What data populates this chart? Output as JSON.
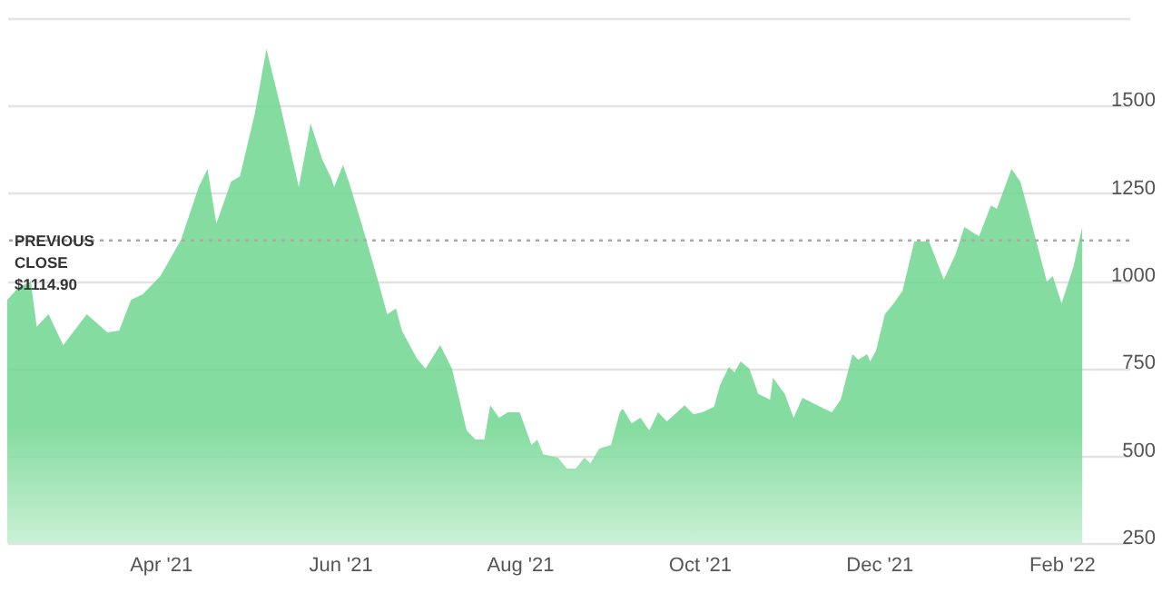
{
  "chart_data": {
    "type": "area",
    "color": "#6fd68f",
    "x": [
      "2021-02-08",
      "2021-02-12",
      "2021-02-16",
      "2021-02-18",
      "2021-02-22",
      "2021-02-27",
      "2021-03-07",
      "2021-03-14",
      "2021-03-18",
      "2021-03-22",
      "2021-03-26",
      "2021-04-01",
      "2021-04-08",
      "2021-04-14",
      "2021-04-17",
      "2021-04-20",
      "2021-04-25",
      "2021-04-28",
      "2021-05-03",
      "2021-05-07",
      "2021-05-12",
      "2021-05-18",
      "2021-05-22",
      "2021-05-26",
      "2021-05-29",
      "2021-05-30",
      "2021-06-02",
      "2021-06-04",
      "2021-06-09",
      "2021-06-14",
      "2021-06-17",
      "2021-06-20",
      "2021-06-22",
      "2021-06-27",
      "2021-06-30",
      "2021-07-05",
      "2021-07-09",
      "2021-07-14",
      "2021-07-17",
      "2021-07-20",
      "2021-07-22",
      "2021-07-25",
      "2021-07-28",
      "2021-08-01",
      "2021-08-05",
      "2021-08-07",
      "2021-08-09",
      "2021-08-14",
      "2021-08-17",
      "2021-08-20",
      "2021-08-23",
      "2021-08-25",
      "2021-08-28",
      "2021-09-01",
      "2021-09-04",
      "2021-09-05",
      "2021-09-08",
      "2021-09-11",
      "2021-09-14",
      "2021-09-17",
      "2021-09-20",
      "2021-09-26",
      "2021-09-29",
      "2021-10-02",
      "2021-10-06",
      "2021-10-08",
      "2021-10-11",
      "2021-10-13",
      "2021-10-15",
      "2021-10-18",
      "2021-10-21",
      "2021-10-25",
      "2021-10-26",
      "2021-10-30",
      "2021-11-02",
      "2021-11-05",
      "2021-11-10",
      "2021-11-15",
      "2021-11-18",
      "2021-11-22",
      "2021-11-24",
      "2021-11-27",
      "2021-11-28",
      "2021-11-30",
      "2021-12-03",
      "2021-12-06",
      "2021-12-09",
      "2021-12-13",
      "2021-12-18",
      "2021-12-23",
      "2021-12-27",
      "2021-12-30",
      "2022-01-02",
      "2022-01-04",
      "2022-01-08",
      "2022-01-10",
      "2022-01-15",
      "2022-01-18",
      "2022-01-21",
      "2022-01-27",
      "2022-01-29",
      "2022-02-01",
      "2022-02-05",
      "2022-02-08"
    ],
    "values": [
      945,
      982,
      997,
      868,
      904,
      816,
      904,
      852,
      857,
      945,
      961,
      1013,
      1117,
      1267,
      1319,
      1163,
      1283,
      1298,
      1475,
      1662,
      1490,
      1267,
      1449,
      1345,
      1293,
      1267,
      1330,
      1283,
      1143,
      997,
      904,
      920,
      857,
      779,
      748,
      816,
      748,
      572,
      546,
      546,
      644,
      608,
      624,
      624,
      530,
      546,
      504,
      494,
      463,
      463,
      494,
      478,
      520,
      530,
      624,
      634,
      592,
      608,
      572,
      624,
      598,
      644,
      618,
      624,
      639,
      701,
      753,
      738,
      769,
      748,
      676,
      660,
      722,
      676,
      608,
      665,
      644,
      624,
      660,
      790,
      774,
      790,
      769,
      800,
      904,
      935,
      971,
      1112,
      1112,
      1003,
      1075,
      1153,
      1137,
      1127,
      1215,
      1205,
      1319,
      1283,
      1190,
      997,
      1013,
      935,
      1039,
      1153
    ],
    "xlim": [
      "2021-02-08",
      "2022-02-24"
    ],
    "ylim": [
      250,
      1750
    ],
    "xticks": [
      {
        "value": "2021-04-01",
        "label": "Apr '21"
      },
      {
        "value": "2021-06-01",
        "label": "Jun '21"
      },
      {
        "value": "2021-08-01",
        "label": "Aug '21"
      },
      {
        "value": "2021-10-01",
        "label": "Oct '21"
      },
      {
        "value": "2021-12-01",
        "label": "Dec '21"
      },
      {
        "value": "2022-02-01",
        "label": "Feb '22"
      }
    ],
    "yticks": [
      250,
      500,
      750,
      1000,
      1250,
      1500,
      {
        "value": 1750,
        "label": null
      }
    ],
    "grid": "y",
    "ref_lines": [
      {
        "axis": "y",
        "value": 1114.9,
        "label": "PREVIOUS\nCLOSE\n$1114.90",
        "line_style": "dotted",
        "color": "#aaaaaa"
      }
    ]
  }
}
